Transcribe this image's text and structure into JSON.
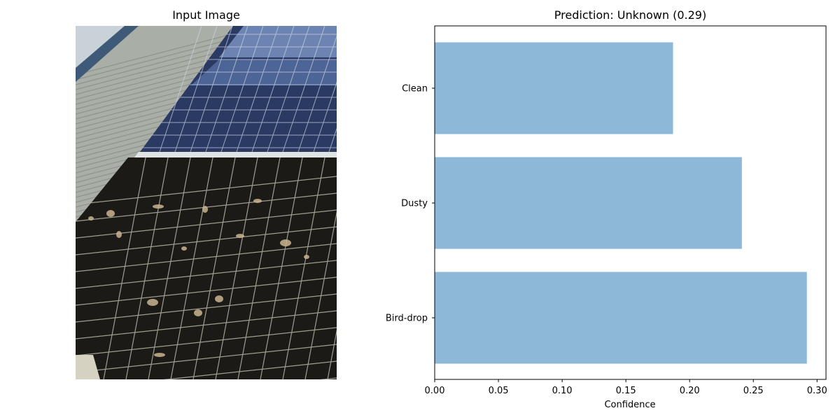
{
  "left_panel": {
    "title": "Input Image"
  },
  "chart_data": {
    "type": "bar",
    "orientation": "horizontal",
    "title": "Prediction: Unknown (0.29)",
    "xlabel": "Confidence",
    "ylabel": "",
    "categories": [
      "Clean",
      "Dusty",
      "Bird-drop"
    ],
    "values": [
      0.187,
      0.241,
      0.292
    ],
    "xlim": [
      0.0,
      0.307
    ],
    "xticks": [
      0.0,
      0.05,
      0.1,
      0.15,
      0.2,
      0.25,
      0.3
    ],
    "xtick_labels": [
      "0.00",
      "0.05",
      "0.10",
      "0.15",
      "0.20",
      "0.25",
      "0.30"
    ],
    "bar_color": "#8db8d8",
    "grid": false
  }
}
